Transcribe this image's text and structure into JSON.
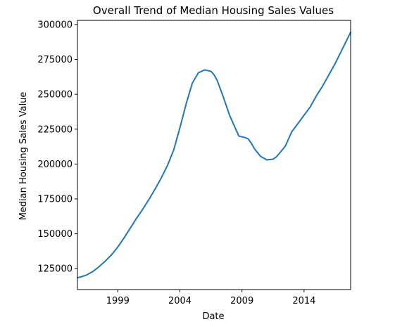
{
  "chart_data": {
    "type": "line",
    "title": "Overall Trend of Median Housing Sales Values",
    "xlabel": "Date",
    "ylabel": "Median Housing Sales Value",
    "xlim": [
      "1996-04",
      "2018-04"
    ],
    "ylim": [
      110000,
      303000
    ],
    "x_ticks": [
      "1999",
      "2004",
      "2009",
      "2014"
    ],
    "y_ticks": [
      125000,
      150000,
      175000,
      200000,
      225000,
      250000,
      275000,
      300000
    ],
    "y_tick_labels": [
      "125000",
      "150000",
      "175000",
      "200000",
      "225000",
      "250000",
      "275000",
      "300000"
    ],
    "grid": false,
    "legend": "none",
    "series": [
      {
        "color": "#1f77b4",
        "x": [
          "1996-04",
          "1996-07",
          "1997-01",
          "1997-07",
          "1998-01",
          "1998-07",
          "1999-01",
          "1999-07",
          "2000-01",
          "2000-07",
          "2001-01",
          "2001-07",
          "2002-01",
          "2002-07",
          "2003-01",
          "2003-07",
          "2004-01",
          "2004-07",
          "2005-01",
          "2005-07",
          "2006-01",
          "2006-07",
          "2006-10",
          "2007-01",
          "2007-04",
          "2007-07",
          "2008-01",
          "2008-07",
          "2009-01",
          "2009-04",
          "2009-07",
          "2009-10",
          "2010-01",
          "2010-04",
          "2010-07",
          "2011-01",
          "2011-07",
          "2012-01",
          "2012-04",
          "2012-07",
          "2013-01",
          "2013-07",
          "2014-01",
          "2014-07",
          "2015-01",
          "2015-07",
          "2016-01",
          "2016-07",
          "2017-01",
          "2017-07",
          "2018-01",
          "2018-04"
        ],
        "values": [
          118500,
          119000,
          120500,
          123000,
          126500,
          130500,
          135000,
          140500,
          147000,
          154000,
          161000,
          167500,
          174500,
          182000,
          190000,
          199000,
          210000,
          226000,
          243000,
          258000,
          265500,
          267500,
          267000,
          266500,
          264000,
          260000,
          248000,
          235000,
          225000,
          220000,
          219500,
          219000,
          218000,
          215000,
          211000,
          205500,
          203000,
          203500,
          205000,
          207500,
          213000,
          223000,
          229000,
          235000,
          241000,
          249000,
          256000,
          264000,
          272000,
          281000,
          290000,
          294500
        ]
      }
    ]
  }
}
